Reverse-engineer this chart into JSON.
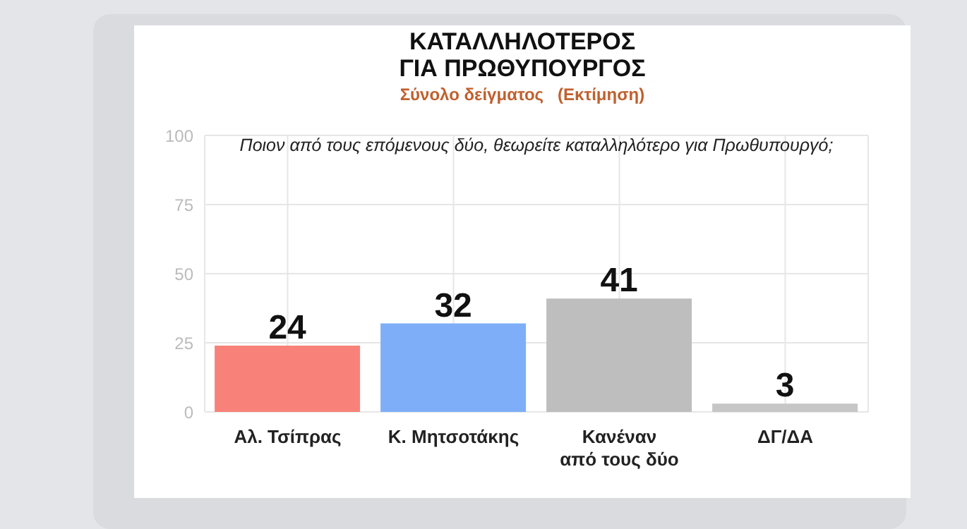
{
  "chart_data": {
    "type": "bar",
    "title": "ΚΑΤΑΛΛΗΛΟΤΕΡΟΣ ΓΙΑ ΠΡΩΘΥΠΟΥΡΓΟΣ",
    "subtitle": "Σύνολο δείγματος   (Εκτίμηση)",
    "annotations": [
      "Ποιον από τους επόμενους δύο, θεωρείτε καταλληλότερο για Πρωθυπουργό;"
    ],
    "categories": [
      "Αλ. Τσίπρας",
      "Κ. Μητσοτάκης",
      "Κανέναν από τους δύο",
      "ΔΓ/ΔΑ"
    ],
    "values": [
      24,
      32,
      41,
      3
    ],
    "colors": [
      "#f8827a",
      "#7eaef8",
      "#bebebe",
      "#c6c6c6"
    ],
    "ylim": [
      0,
      100
    ],
    "yticks": [
      0,
      25,
      50,
      75,
      100
    ],
    "grid": true,
    "data_labels": true
  }
}
